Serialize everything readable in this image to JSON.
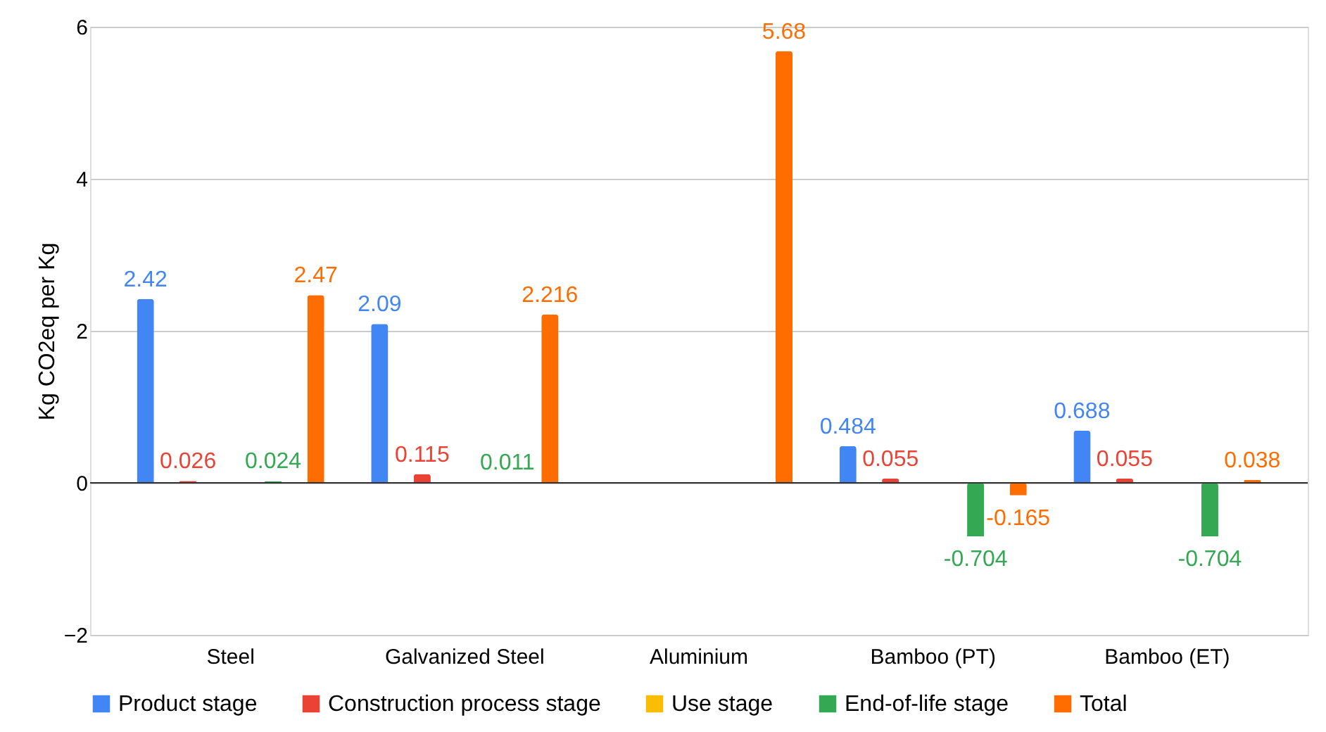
{
  "chart_data": {
    "type": "bar",
    "ylabel": "Kg CO2eq per Kg",
    "categories": [
      "Steel",
      "Galvanized Steel",
      "Aluminium",
      "Bamboo (PT)",
      "Bamboo (ET)"
    ],
    "series": [
      {
        "name": "Product stage",
        "color": "#4285f4",
        "values": [
          2.42,
          2.09,
          null,
          0.484,
          0.688
        ]
      },
      {
        "name": "Construction process stage",
        "color": "#ea4335",
        "values": [
          0.026,
          0.115,
          null,
          0.055,
          0.055
        ]
      },
      {
        "name": "Use stage",
        "color": "#fbbc04",
        "values": [
          null,
          null,
          null,
          null,
          null
        ]
      },
      {
        "name": "End-of-life stage",
        "color": "#34a853",
        "values": [
          0.024,
          0.011,
          null,
          -0.704,
          -0.704
        ]
      },
      {
        "name": "Total",
        "color": "#ff6d01",
        "values": [
          2.47,
          2.216,
          5.68,
          -0.165,
          0.038
        ]
      }
    ],
    "ylim": [
      -2,
      6
    ],
    "yticks": [
      -2,
      0,
      2,
      4,
      6
    ],
    "grid": "y",
    "legend": "bottom",
    "data_labels": true
  }
}
